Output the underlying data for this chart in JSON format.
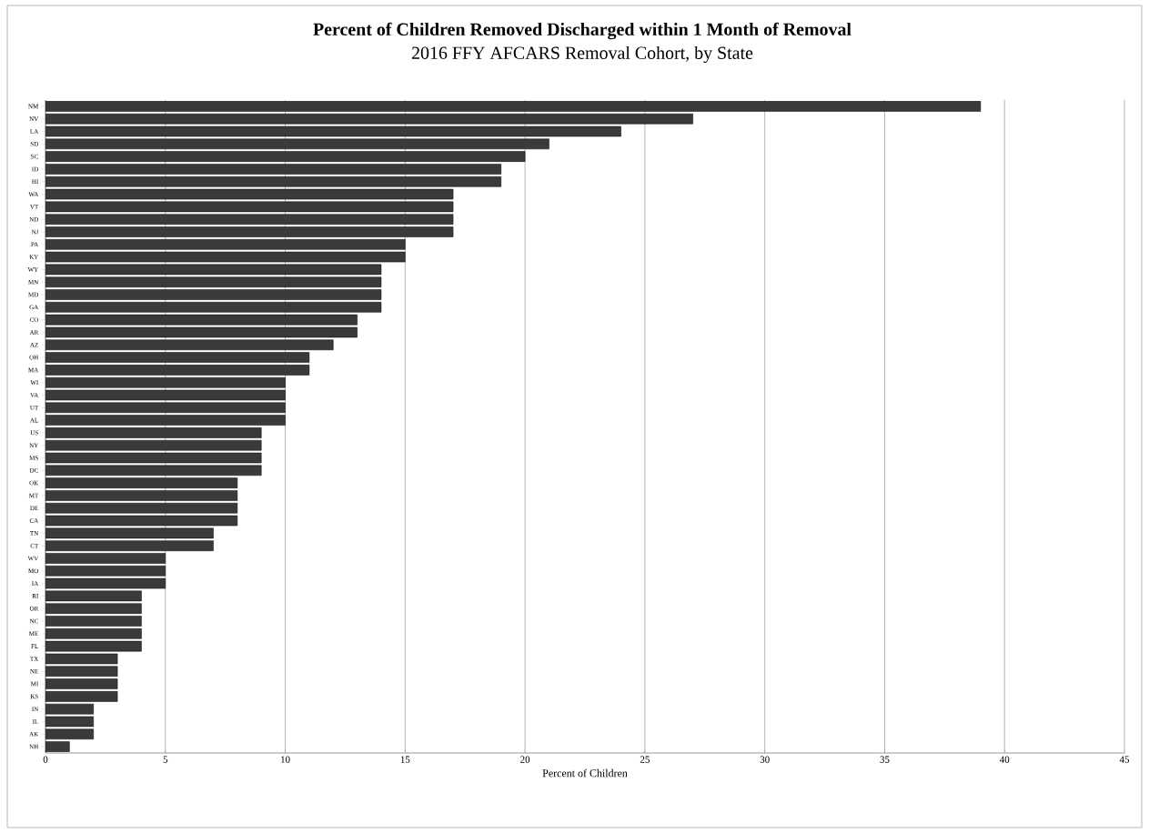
{
  "chart_data": {
    "type": "bar",
    "orientation": "horizontal",
    "title": "Percent of Children Removed Discharged within 1 Month of Removal",
    "subtitle": "2016 FFY AFCARS Removal Cohort, by State",
    "xlabel": "Percent of Children",
    "categories": [
      "NM",
      "NV",
      "LA",
      "SD",
      "SC",
      "ID",
      "HI",
      "WA",
      "VT",
      "ND",
      "NJ",
      "PA",
      "KY",
      "WY",
      "MN",
      "MD",
      "GA",
      "CO",
      "AR",
      "AZ",
      "OH",
      "MA",
      "WI",
      "VA",
      "UT",
      "AL",
      "US",
      "NY",
      "MS",
      "DC",
      "OK",
      "MT",
      "DE",
      "CA",
      "TN",
      "CT",
      "WV",
      "MO",
      "IA",
      "RI",
      "OR",
      "NC",
      "ME",
      "FL",
      "TX",
      "NE",
      "MI",
      "KS",
      "IN",
      "IL",
      "AK",
      "NH"
    ],
    "values": [
      39,
      27,
      24,
      21,
      20,
      19,
      19,
      17,
      17,
      17,
      17,
      15,
      15,
      14,
      14,
      14,
      14,
      13,
      13,
      12,
      11,
      11,
      10,
      10,
      10,
      10,
      9,
      9,
      9,
      9,
      8,
      8,
      8,
      8,
      7,
      7,
      5,
      5,
      5,
      4,
      4,
      4,
      4,
      4,
      3,
      3,
      3,
      3,
      2,
      2,
      2,
      1
    ],
    "color": "#3a3a3a",
    "xlim": [
      0,
      45
    ],
    "xticks": [
      0,
      5,
      10,
      15,
      20,
      25,
      30,
      35,
      40,
      45
    ],
    "grid": "x"
  }
}
